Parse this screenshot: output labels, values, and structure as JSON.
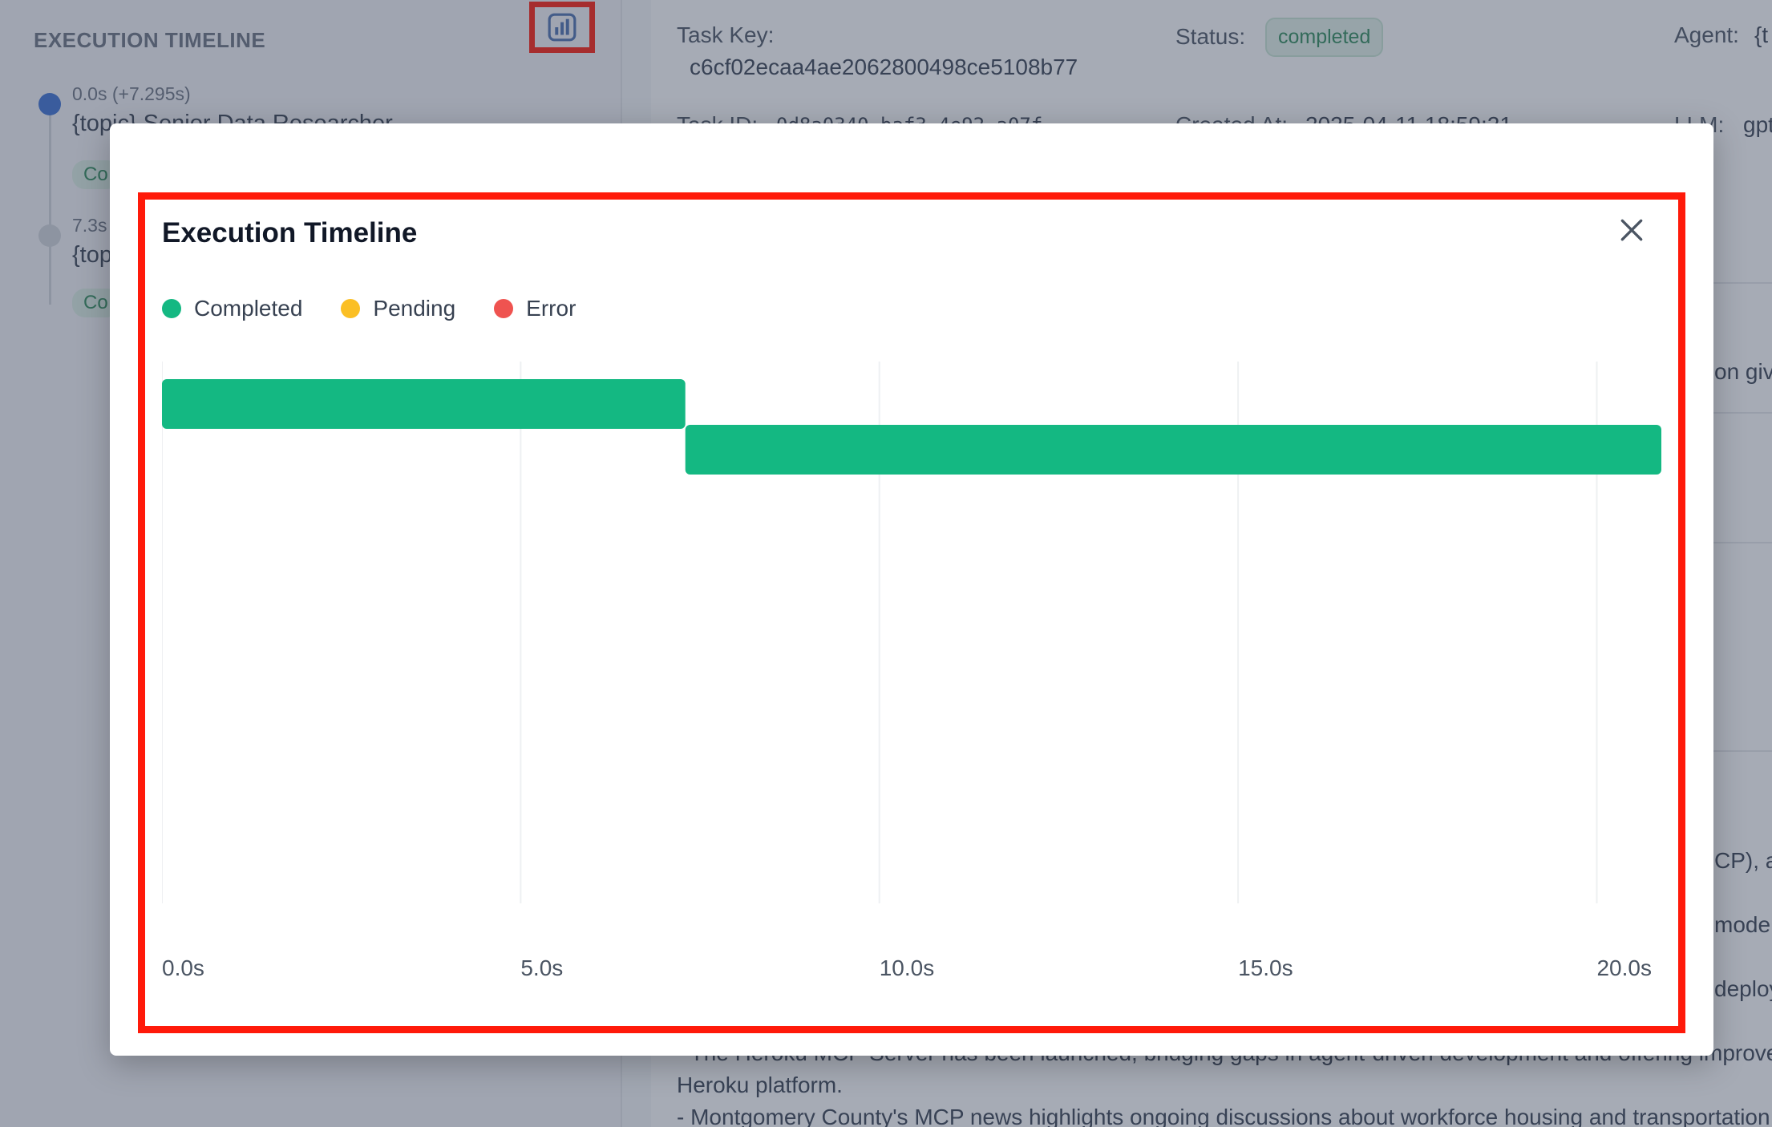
{
  "sidebar": {
    "title": "EXECUTION TIMELINE",
    "timeline": [
      {
        "time": "0.0s (+7.295s)",
        "name": "{topic} Senior Data Researcher",
        "chip": "Co"
      },
      {
        "time": "7.3s",
        "name": "{top",
        "chip": "Co"
      }
    ]
  },
  "details": {
    "task_key_label": "Task Key:",
    "task_key_value": "c6cf02ecaa4ae2062800498ce5108b77",
    "status_label": "Status:",
    "status_value": "completed",
    "agent_label": "Agent:",
    "agent_value": "{t",
    "task_id_label": "Task ID:",
    "task_id_value": "0d8a0340-baf3-4e92-a07f",
    "created_label": "Created At:",
    "created_value": "2025-04-11 18:59:21",
    "llm_label": "LLM:",
    "llm_value": "gpt"
  },
  "body_fragments": {
    "frag1": "on giv",
    "frag2": "CP), a",
    "frag3": "mode,",
    "frag4": "deploy",
    "frag5": "- The Heroku MCP Server has been launched, bridging gaps in agent-driven development and offering improve",
    "frag6": "Heroku platform.",
    "frag7": "- Montgomery County's MCP news highlights ongoing discussions about workforce housing and transportation"
  },
  "modal": {
    "title": "Execution Timeline",
    "legend": [
      {
        "label": "Completed",
        "color": "#14b882"
      },
      {
        "label": "Pending",
        "color": "#fbbf24"
      },
      {
        "label": "Error",
        "color": "#ef5350"
      }
    ]
  },
  "chart_data": {
    "type": "gantt",
    "unit": "s",
    "xlim": [
      0,
      20.9
    ],
    "ticks": [
      {
        "value": 0,
        "label": "0.0s"
      },
      {
        "value": 5,
        "label": "5.0s"
      },
      {
        "value": 10,
        "label": "10.0s"
      },
      {
        "value": 15,
        "label": "15.0s"
      },
      {
        "value": 20,
        "label": "20.0s"
      }
    ],
    "bars": [
      {
        "start": 0.0,
        "end": 7.295,
        "status": "Completed",
        "color": "#14b882"
      },
      {
        "start": 7.295,
        "end": 20.9,
        "status": "Completed",
        "color": "#14b882"
      }
    ],
    "grid": true
  }
}
